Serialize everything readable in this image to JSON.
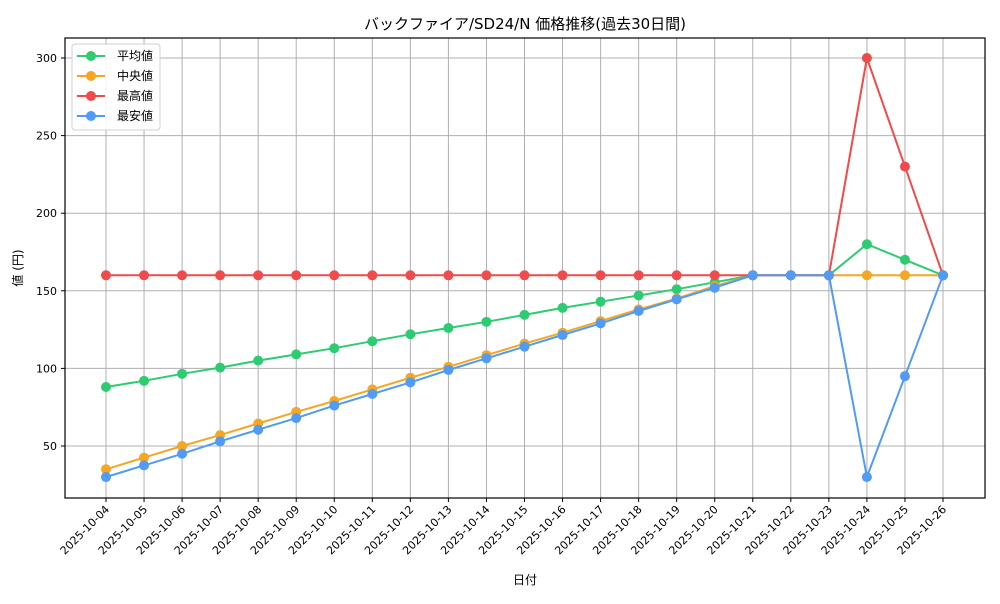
{
  "chart_data": {
    "type": "line",
    "title": "バックファイア/SD24/N 価格推移(過去30日間)",
    "xlabel": "日付",
    "ylabel": "値 (円)",
    "ylim": [
      16,
      313
    ],
    "yticks": [
      50,
      100,
      150,
      200,
      250,
      300
    ],
    "grid": true,
    "legend_position": "upper left",
    "categories": [
      "2025-10-04",
      "2025-10-05",
      "2025-10-06",
      "2025-10-07",
      "2025-10-08",
      "2025-10-09",
      "2025-10-10",
      "2025-10-11",
      "2025-10-12",
      "2025-10-13",
      "2025-10-14",
      "2025-10-15",
      "2025-10-16",
      "2025-10-17",
      "2025-10-18",
      "2025-10-19",
      "2025-10-20",
      "2025-10-21",
      "2025-10-22",
      "2025-10-23",
      "2025-10-24",
      "2025-10-25",
      "2025-10-26"
    ],
    "series": [
      {
        "name": "平均値",
        "color": "#2ecc71",
        "values": [
          88,
          92,
          96.5,
          100.5,
          105,
          109,
          113,
          117.5,
          122,
          126,
          130,
          134.5,
          139,
          143,
          147,
          151,
          155.5,
          160,
          160,
          160,
          180,
          170,
          160
        ]
      },
      {
        "name": "中央値",
        "color": "#f5a623",
        "values": [
          35,
          42.5,
          50,
          57,
          64.5,
          72,
          79,
          86.5,
          94,
          101,
          108.5,
          116,
          123,
          130.5,
          138,
          145,
          153,
          160,
          160,
          160,
          160,
          160,
          160
        ]
      },
      {
        "name": "最高値",
        "color": "#f04a4a",
        "values": [
          160,
          160,
          160,
          160,
          160,
          160,
          160,
          160,
          160,
          160,
          160,
          160,
          160,
          160,
          160,
          160,
          160,
          160,
          160,
          160,
          300,
          230,
          160
        ]
      },
      {
        "name": "最安値",
        "color": "#4f9bf5",
        "values": [
          30,
          37.5,
          45,
          53,
          60.5,
          68,
          76,
          83.5,
          91,
          99,
          106.5,
          114,
          121.5,
          129,
          137,
          144.5,
          152,
          160,
          160,
          160,
          30,
          95,
          160
        ]
      }
    ]
  }
}
